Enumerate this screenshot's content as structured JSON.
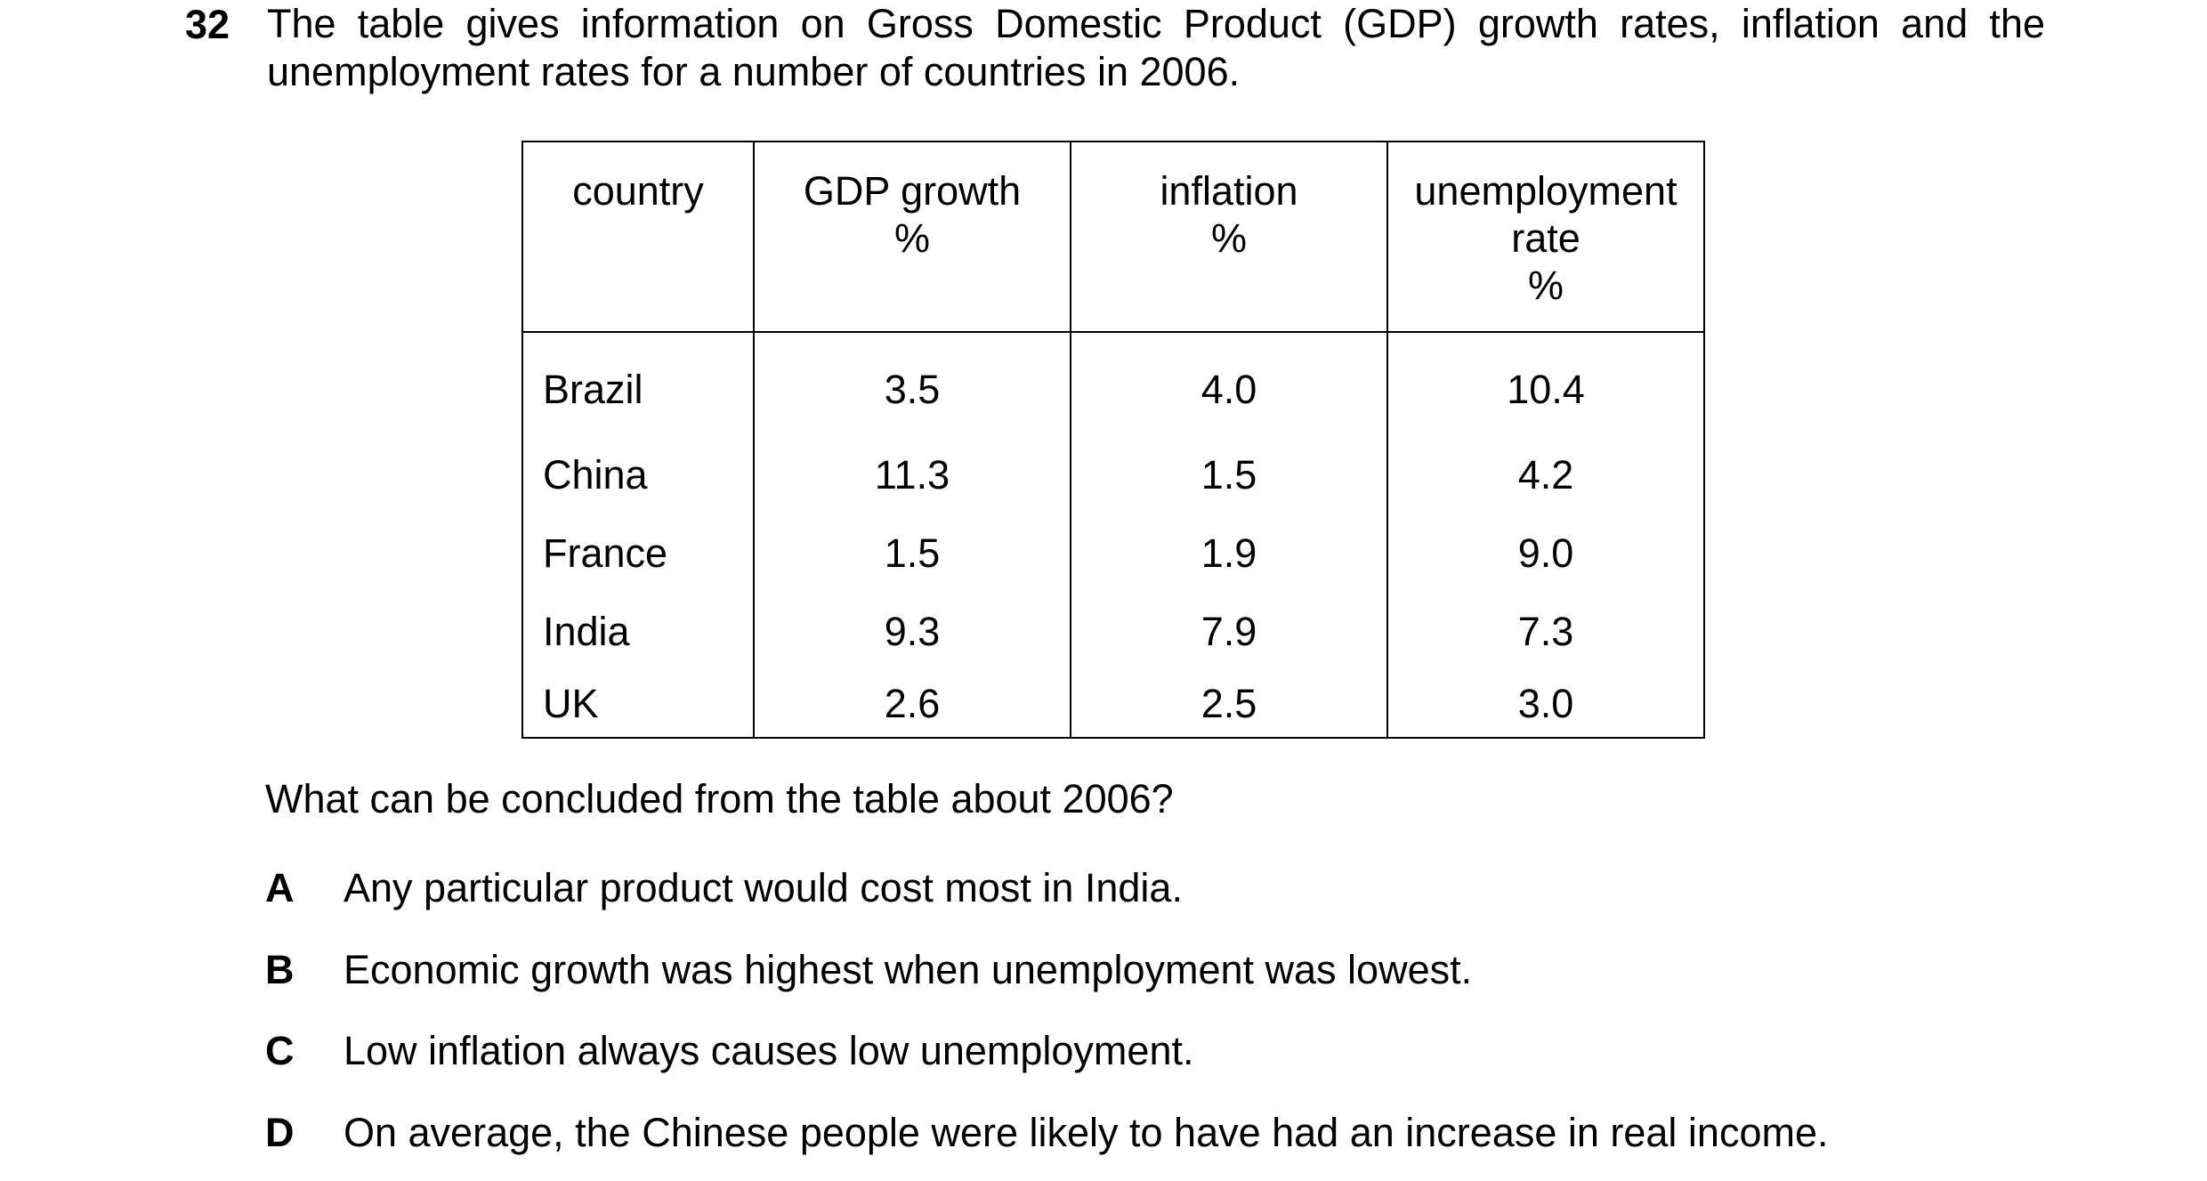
{
  "question": {
    "number": "32",
    "stem": "The table gives information on Gross Domestic Product (GDP) growth rates, inflation and the unemployment rates for a number of countries in 2006."
  },
  "table": {
    "headers": {
      "country": "country",
      "gdp_line1": "GDP growth",
      "gdp_line2": "%",
      "inflation_line1": "inflation",
      "inflation_line2": "%",
      "unemp_line1": "unemployment",
      "unemp_line2": "rate",
      "unemp_line3": "%"
    },
    "rows": [
      {
        "country": "Brazil",
        "gdp": "3.5",
        "inflation": "4.0",
        "unemployment": "10.4"
      },
      {
        "country": "China",
        "gdp": "11.3",
        "inflation": "1.5",
        "unemployment": "4.2"
      },
      {
        "country": "France",
        "gdp": "1.5",
        "inflation": "1.9",
        "unemployment": "9.0"
      },
      {
        "country": "India",
        "gdp": "9.3",
        "inflation": "7.9",
        "unemployment": "7.3"
      },
      {
        "country": "UK",
        "gdp": "2.6",
        "inflation": "2.5",
        "unemployment": "3.0"
      }
    ]
  },
  "prompt": "What can be concluded from the table about 2006?",
  "options": [
    {
      "letter": "A",
      "text": "Any particular product would cost most in India."
    },
    {
      "letter": "B",
      "text": "Economic growth was highest when unemployment was lowest."
    },
    {
      "letter": "C",
      "text": "Low inflation always causes low unemployment."
    },
    {
      "letter": "D",
      "text": "On average, the Chinese people were likely to have had an increase in real income."
    }
  ]
}
